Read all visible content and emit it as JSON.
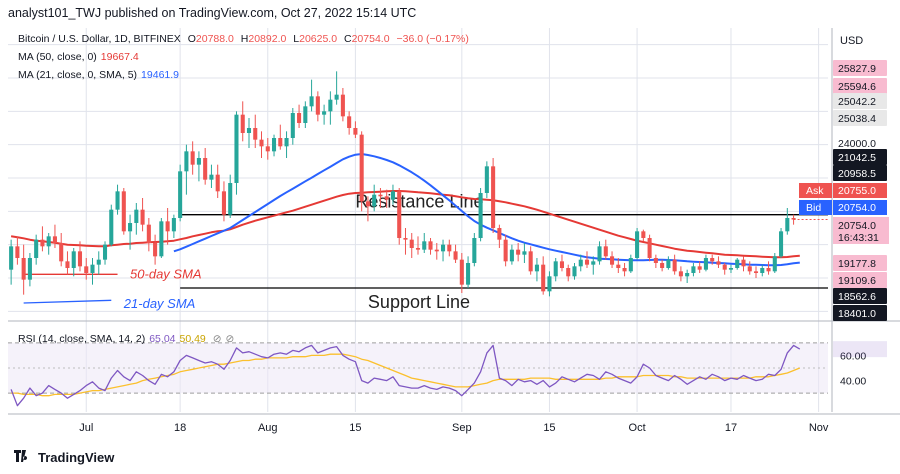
{
  "header": {
    "published": "analyst101_TWJ published on TradingView.com, Oct 27, 2022 15:14 UTC"
  },
  "legend": {
    "symbol": "Bitcoin / U.S. Dollar, 1D, BITFINEX",
    "o_label": "O",
    "o": "20788.0",
    "h_label": "H",
    "h": "20892.0",
    "l_label": "L",
    "l": "20625.0",
    "c_label": "C",
    "c": "20754.0",
    "chg": "−36.0 (−0.17%)",
    "ma50_label": "MA (50, close, 0)",
    "ma50": "19667.4",
    "ma21_label": "MA (21, close, 0, SMA, 5)",
    "ma21": "19461.9",
    "rsi_label": "RSI (14, close, SMA, 14, 2)",
    "rsi": "65.04",
    "rsi_sma": "50.49"
  },
  "footer": {
    "brand": "TradingView"
  },
  "colors": {
    "up": "#26a69a",
    "down": "#ef5350",
    "ma50": "#e53935",
    "ma21": "#2962ff",
    "rsi": "#7e57c2",
    "rsi_sma": "#fbc02d",
    "grid": "#e0e3eb"
  },
  "chart_data": {
    "type": "candlestick",
    "currency": "USD",
    "price_range": [
      17800,
      26500
    ],
    "rsi_range": [
      15,
      85
    ],
    "rsi_levels": [
      30,
      70
    ],
    "x_ticks": [
      {
        "label": "Jul",
        "idx": 12
      },
      {
        "label": "18",
        "idx": 27
      },
      {
        "label": "Aug",
        "idx": 41
      },
      {
        "label": "15",
        "idx": 55
      },
      {
        "label": "Sep",
        "idx": 72
      },
      {
        "label": "15",
        "idx": 86
      },
      {
        "label": "Oct",
        "idx": 100
      },
      {
        "label": "17",
        "idx": 115
      },
      {
        "label": "Nov",
        "idx": 129
      }
    ],
    "price_axis_labels": [
      "25827.9",
      "25594.6",
      "25042.2",
      "25038.4",
      "24000.0",
      "21042.5",
      "20958.5",
      "20755.0",
      "20754.0",
      "19177.8",
      "19109.6",
      "18562.6",
      "18401.0"
    ],
    "ask": {
      "label": "Ask",
      "value": "20755.0"
    },
    "bid": {
      "label": "Bid",
      "value": "20754.0"
    },
    "last": {
      "value": "20754.0",
      "countdown": "16:43:31"
    },
    "rsi_axis_labels": [
      "60.00",
      "40.00"
    ],
    "annotations": {
      "resistance": "Resistance Line",
      "support": "Support Line",
      "sma50": "50-day SMA",
      "sma21": "21-day SMA"
    },
    "resistance_level": 20900,
    "support_level": 18700,
    "candles": [
      [
        19250,
        20150,
        18800,
        19950
      ],
      [
        19950,
        20250,
        19400,
        19600
      ],
      [
        19600,
        20000,
        18500,
        18950
      ],
      [
        18950,
        19750,
        18750,
        19600
      ],
      [
        19600,
        20300,
        19400,
        20150
      ],
      [
        20150,
        20550,
        19800,
        19950
      ],
      [
        19950,
        20350,
        19700,
        20250
      ],
      [
        20250,
        20600,
        19900,
        20050
      ],
      [
        20050,
        20350,
        19350,
        19500
      ],
      [
        19500,
        19800,
        19100,
        19300
      ],
      [
        19300,
        19900,
        19050,
        19800
      ],
      [
        19800,
        20100,
        19200,
        19350
      ],
      [
        19350,
        19600,
        18950,
        19150
      ],
      [
        19150,
        19600,
        18800,
        19400
      ],
      [
        19400,
        19800,
        19100,
        19550
      ],
      [
        19550,
        20100,
        19400,
        20000
      ],
      [
        20000,
        21200,
        19950,
        21050
      ],
      [
        21050,
        21800,
        20900,
        21600
      ],
      [
        21600,
        21700,
        20300,
        20400
      ],
      [
        20400,
        20900,
        19850,
        20650
      ],
      [
        20650,
        21250,
        20300,
        21050
      ],
      [
        21050,
        21400,
        20400,
        20600
      ],
      [
        20600,
        20800,
        19800,
        20050
      ],
      [
        20050,
        20300,
        19400,
        19650
      ],
      [
        19650,
        20800,
        19600,
        20700
      ],
      [
        20700,
        21100,
        20000,
        20400
      ],
      [
        20400,
        20900,
        20200,
        20800
      ],
      [
        20800,
        22400,
        20700,
        22200
      ],
      [
        22200,
        23000,
        21500,
        22800
      ],
      [
        22800,
        23100,
        22100,
        22400
      ],
      [
        22400,
        22800,
        21900,
        22600
      ],
      [
        22600,
        22900,
        21800,
        21950
      ],
      [
        21950,
        22400,
        21700,
        22100
      ],
      [
        22100,
        22400,
        21400,
        21600
      ],
      [
        21600,
        21900,
        20700,
        20900
      ],
      [
        20900,
        22100,
        20800,
        21850
      ],
      [
        21850,
        24000,
        21500,
        23900
      ],
      [
        23900,
        24300,
        23100,
        23350
      ],
      [
        23350,
        23800,
        22900,
        23500
      ],
      [
        23500,
        23900,
        22900,
        23150
      ],
      [
        23150,
        23400,
        22600,
        22950
      ],
      [
        22950,
        23200,
        22550,
        22800
      ],
      [
        22800,
        23300,
        22650,
        23200
      ],
      [
        23200,
        23600,
        22850,
        22950
      ],
      [
        22950,
        23400,
        22600,
        23200
      ],
      [
        23200,
        24100,
        23000,
        23950
      ],
      [
        23950,
        24200,
        23500,
        23650
      ],
      [
        23650,
        24300,
        23500,
        24150
      ],
      [
        24150,
        24950,
        24000,
        24450
      ],
      [
        24450,
        24600,
        23700,
        23900
      ],
      [
        23900,
        24200,
        23600,
        24000
      ],
      [
        24000,
        24600,
        23600,
        24350
      ],
      [
        24350,
        25200,
        24200,
        24500
      ],
      [
        24500,
        24700,
        23700,
        23850
      ],
      [
        23850,
        24000,
        23300,
        23500
      ],
      [
        23500,
        23700,
        23200,
        23300
      ],
      [
        23300,
        23400,
        21000,
        21300
      ],
      [
        21300,
        21450,
        20700,
        21150
      ],
      [
        21150,
        21800,
        21000,
        21500
      ],
      [
        21500,
        21700,
        21100,
        21450
      ],
      [
        21450,
        21650,
        21100,
        21350
      ],
      [
        21350,
        21800,
        21200,
        21600
      ],
      [
        21600,
        21700,
        20000,
        20200
      ],
      [
        20200,
        20500,
        19700,
        20150
      ],
      [
        20150,
        20350,
        19600,
        19900
      ],
      [
        19900,
        20250,
        19700,
        19850
      ],
      [
        19850,
        20350,
        19750,
        20100
      ],
      [
        20100,
        20200,
        19700,
        19850
      ],
      [
        19850,
        20050,
        19550,
        19800
      ],
      [
        19800,
        20150,
        19500,
        20000
      ],
      [
        20000,
        20150,
        19650,
        19800
      ],
      [
        19800,
        20000,
        19450,
        19550
      ],
      [
        19550,
        19750,
        18550,
        18800
      ],
      [
        18800,
        19650,
        18700,
        19450
      ],
      [
        19450,
        20350,
        19350,
        20200
      ],
      [
        20200,
        21700,
        20100,
        21550
      ],
      [
        21550,
        22500,
        21400,
        22350
      ],
      [
        22350,
        22600,
        20350,
        20500
      ],
      [
        20500,
        20600,
        19900,
        20150
      ],
      [
        20150,
        20300,
        19350,
        19500
      ],
      [
        19500,
        20000,
        19400,
        19850
      ],
      [
        19850,
        20050,
        19500,
        19700
      ],
      [
        19700,
        20050,
        19450,
        19800
      ],
      [
        19800,
        19950,
        19100,
        19200
      ],
      [
        19200,
        19600,
        18900,
        19400
      ],
      [
        19400,
        19650,
        18500,
        18600
      ],
      [
        18600,
        19200,
        18450,
        19050
      ],
      [
        19050,
        19600,
        18900,
        19500
      ],
      [
        19500,
        19700,
        19200,
        19300
      ],
      [
        19300,
        19400,
        18900,
        19050
      ],
      [
        19050,
        19450,
        18950,
        19350
      ],
      [
        19350,
        19700,
        19200,
        19550
      ],
      [
        19550,
        19800,
        19300,
        19400
      ],
      [
        19400,
        19650,
        19100,
        19500
      ],
      [
        19500,
        20100,
        19400,
        19950
      ],
      [
        19950,
        20150,
        19550,
        19650
      ],
      [
        19650,
        19800,
        19300,
        19400
      ],
      [
        19400,
        19600,
        19150,
        19300
      ],
      [
        19300,
        19450,
        19050,
        19200
      ],
      [
        19200,
        19700,
        19150,
        19600
      ],
      [
        19600,
        20500,
        19550,
        20400
      ],
      [
        20400,
        20450,
        20100,
        20200
      ],
      [
        20200,
        20300,
        19500,
        19600
      ],
      [
        19600,
        19700,
        19300,
        19450
      ],
      [
        19450,
        19550,
        19200,
        19300
      ],
      [
        19300,
        19650,
        19250,
        19550
      ],
      [
        19550,
        19700,
        19100,
        19200
      ],
      [
        19200,
        19350,
        18900,
        19050
      ],
      [
        19050,
        19250,
        18850,
        19150
      ],
      [
        19150,
        19450,
        19050,
        19350
      ],
      [
        19350,
        19500,
        19150,
        19250
      ],
      [
        19250,
        19700,
        19200,
        19600
      ],
      [
        19600,
        19700,
        19400,
        19500
      ],
      [
        19500,
        19650,
        19300,
        19400
      ],
      [
        19400,
        19450,
        19100,
        19250
      ],
      [
        19250,
        19400,
        19150,
        19300
      ],
      [
        19300,
        19600,
        19250,
        19550
      ],
      [
        19550,
        19650,
        19200,
        19350
      ],
      [
        19350,
        19500,
        19100,
        19200
      ],
      [
        19200,
        19350,
        19000,
        19150
      ],
      [
        19150,
        19400,
        19050,
        19300
      ],
      [
        19300,
        19500,
        19100,
        19200
      ],
      [
        19200,
        19750,
        19150,
        19650
      ],
      [
        19650,
        20500,
        19600,
        20400
      ],
      [
        20400,
        21100,
        20300,
        20800
      ],
      [
        20800,
        20900,
        20600,
        20754
      ]
    ],
    "ma50": [
      20250,
      20220,
      20190,
      20150,
      20120,
      20100,
      20080,
      20060,
      20030,
      20000,
      19990,
      19980,
      19970,
      19960,
      19950,
      19950,
      19980,
      20000,
      20020,
      20030,
      20050,
      20060,
      20070,
      20080,
      20090,
      20100,
      20120,
      20160,
      20200,
      20250,
      20290,
      20330,
      20370,
      20400,
      20420,
      20460,
      20530,
      20600,
      20660,
      20720,
      20770,
      20820,
      20870,
      20920,
      20970,
      21020,
      21080,
      21140,
      21200,
      21260,
      21320,
      21380,
      21440,
      21490,
      21530,
      21550,
      21560,
      21570,
      21580,
      21590,
      21600,
      21610,
      21610,
      21600,
      21590,
      21570,
      21560,
      21540,
      21520,
      21500,
      21480,
      21450,
      21420,
      21390,
      21370,
      21360,
      21350,
      21330,
      21300,
      21270,
      21230,
      21190,
      21150,
      21100,
      21050,
      20990,
      20930,
      20870,
      20810,
      20750,
      20690,
      20630,
      20570,
      20510,
      20450,
      20390,
      20330,
      20270,
      20220,
      20170,
      20120,
      20080,
      20040,
      20000,
      19960,
      19920,
      19880,
      19850,
      19820,
      19800,
      19780,
      19760,
      19740,
      19720,
      19700,
      19690,
      19680,
      19670,
      19660,
      19650,
      19640,
      19630,
      19620,
      19620,
      19630,
      19650,
      19667
    ],
    "ma21": [
      null,
      null,
      null,
      null,
      null,
      null,
      null,
      null,
      null,
      null,
      null,
      null,
      null,
      null,
      null,
      null,
      null,
      null,
      null,
      null,
      null,
      null,
      null,
      null,
      null,
      null,
      19800,
      19860,
      19940,
      20020,
      20100,
      20180,
      20260,
      20340,
      20420,
      20500,
      20620,
      20740,
      20860,
      20980,
      21100,
      21220,
      21340,
      21460,
      21570,
      21680,
      21790,
      21900,
      22010,
      22120,
      22230,
      22340,
      22450,
      22560,
      22640,
      22700,
      22720,
      22690,
      22650,
      22600,
      22540,
      22470,
      22380,
      22280,
      22170,
      22050,
      21920,
      21780,
      21630,
      21480,
      21330,
      21170,
      21010,
      20850,
      20710,
      20600,
      20510,
      20430,
      20350,
      20270,
      20190,
      20120,
      20060,
      20010,
      19960,
      19910,
      19860,
      19820,
      19780,
      19740,
      19700,
      19660,
      19620,
      19600,
      19580,
      19570,
      19560,
      19550,
      19540,
      19530,
      19530,
      19530,
      19540,
      19550,
      19550,
      19540,
      19530,
      19520,
      19500,
      19490,
      19480,
      19470,
      19460,
      19450,
      19440,
      19430,
      19420,
      19410,
      19400,
      19395,
      19390,
      19385,
      19380,
      19390,
      19410,
      19440,
      19462
    ],
    "rsi": [
      33,
      20,
      26,
      34,
      28,
      30,
      36,
      33,
      30,
      26,
      29,
      32,
      36,
      39,
      34,
      32,
      42,
      48,
      43,
      40,
      47,
      44,
      40,
      37,
      45,
      43,
      47,
      56,
      60,
      58,
      56,
      54,
      55,
      53,
      49,
      56,
      66,
      62,
      63,
      61,
      59,
      58,
      61,
      62,
      61,
      64,
      63,
      66,
      68,
      62,
      64,
      66,
      67,
      60,
      57,
      55,
      40,
      38,
      42,
      41,
      40,
      43,
      36,
      35,
      34,
      34,
      36,
      34,
      33,
      35,
      34,
      32,
      28,
      33,
      38,
      47,
      62,
      68,
      42,
      40,
      36,
      41,
      39,
      40,
      37,
      40,
      35,
      38,
      43,
      41,
      39,
      42,
      45,
      44,
      41,
      47,
      45,
      42,
      40,
      38,
      43,
      53,
      50,
      44,
      42,
      40,
      44,
      41,
      37,
      40,
      43,
      41,
      45,
      43,
      40,
      42,
      41,
      44,
      42,
      40,
      41,
      45,
      44,
      49,
      62,
      68,
      65
    ],
    "rsi_sma": [
      30,
      30,
      29,
      29,
      29,
      28,
      28,
      29,
      29,
      29,
      29,
      30,
      31,
      32,
      32,
      33,
      34,
      35,
      36,
      37,
      38,
      40,
      41,
      42,
      43,
      44,
      45,
      47,
      48,
      49,
      50,
      51,
      52,
      53,
      53,
      54,
      55,
      56,
      56,
      57,
      57,
      58,
      58,
      58,
      58,
      59,
      59,
      59,
      60,
      60,
      60,
      61,
      61,
      61,
      60,
      59,
      57,
      56,
      54,
      52,
      50,
      48,
      46,
      44,
      42,
      41,
      40,
      39,
      38,
      37,
      36,
      35,
      35,
      35,
      36,
      37,
      38,
      40,
      41,
      41,
      41,
      41,
      41,
      42,
      42,
      42,
      42,
      41,
      41,
      41,
      41,
      41,
      41,
      41,
      41,
      42,
      42,
      43,
      43,
      43,
      43,
      44,
      44,
      44,
      44,
      44,
      43,
      43,
      42,
      42,
      42,
      42,
      42,
      42,
      42,
      42,
      42,
      42,
      42,
      43,
      43,
      43,
      44,
      45,
      46,
      48,
      50
    ]
  }
}
